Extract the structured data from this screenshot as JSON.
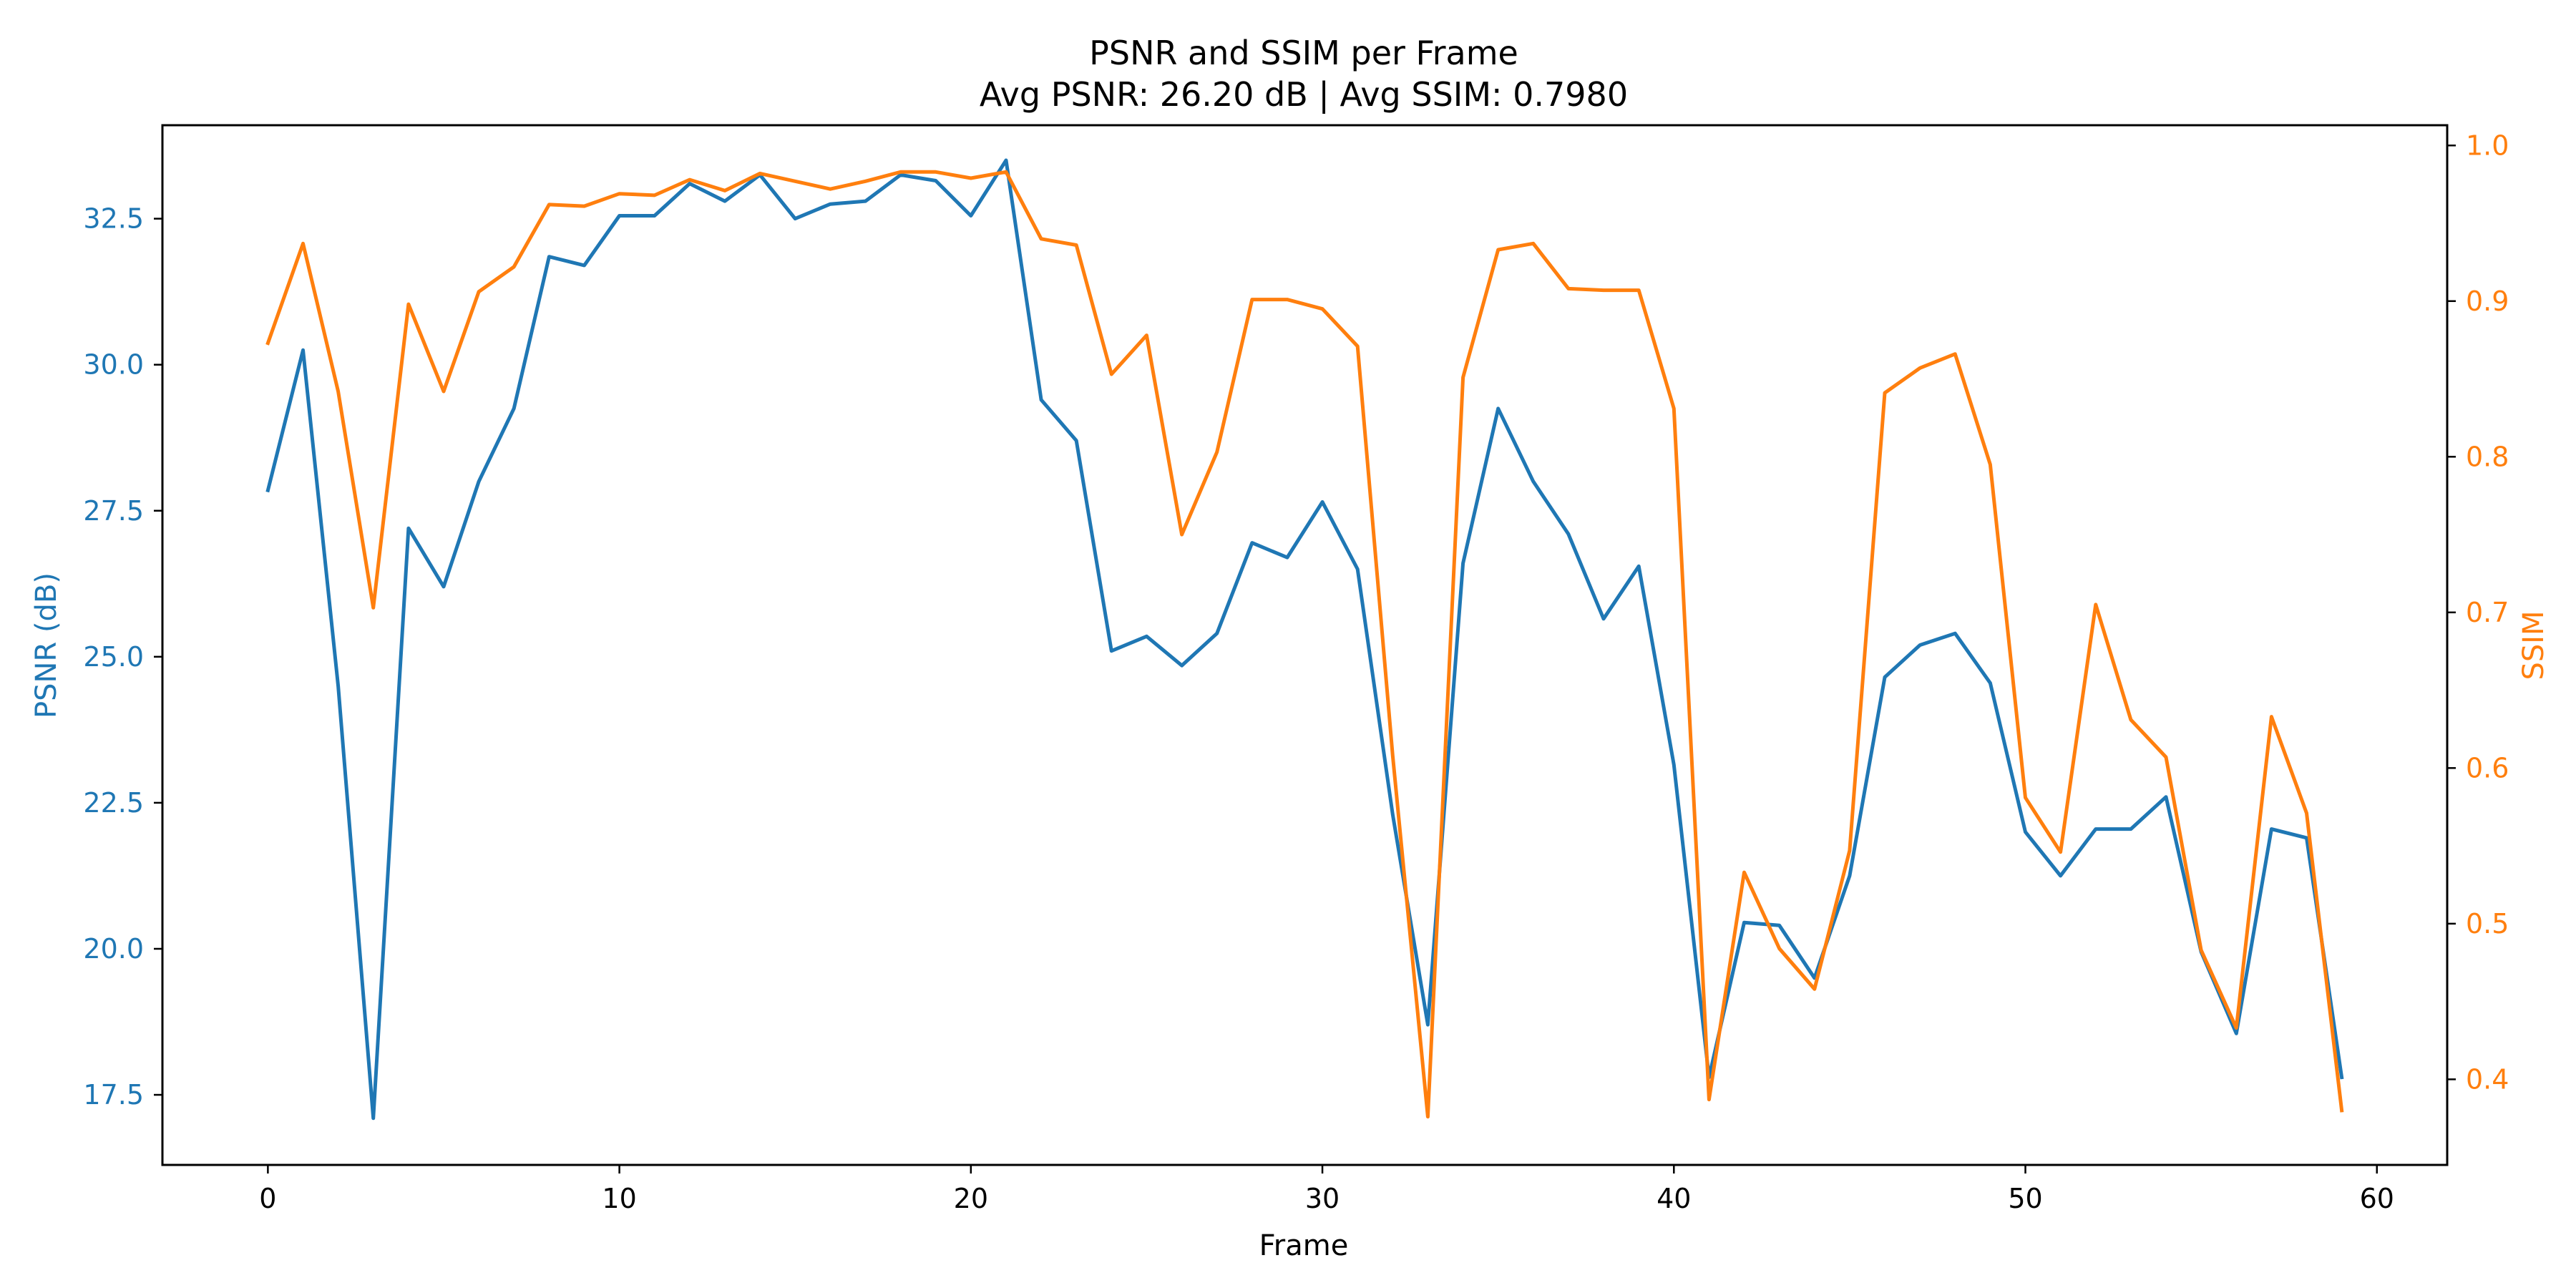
{
  "chart_data": {
    "type": "line",
    "title": "PSNR and SSIM per Frame",
    "subtitle": "Avg PSNR: 26.20 dB | Avg SSIM: 0.7980",
    "xlabel": "Frame",
    "ylabel_left": "PSNR (dB)",
    "ylabel_right": "SSIM",
    "xlim": [
      -3,
      62
    ],
    "ylim_left": [
      16.3,
      34.1
    ],
    "ylim_right": [
      0.345,
      1.013
    ],
    "x_ticks": [
      0,
      10,
      20,
      30,
      40,
      50,
      60
    ],
    "y_left_ticks": [
      "17.5",
      "20.0",
      "22.5",
      "25.0",
      "27.5",
      "30.0",
      "32.5"
    ],
    "y_right_ticks": [
      "0.4",
      "0.5",
      "0.6",
      "0.7",
      "0.8",
      "0.9",
      "1.0"
    ],
    "grid": false,
    "legend": "none",
    "colors": {
      "psnr": "#1f77b4",
      "ssim": "#ff7f0e"
    },
    "x": [
      0,
      1,
      2,
      3,
      4,
      5,
      6,
      7,
      8,
      9,
      10,
      11,
      12,
      13,
      14,
      15,
      16,
      17,
      18,
      19,
      20,
      21,
      22,
      23,
      24,
      25,
      26,
      27,
      28,
      29,
      30,
      31,
      32,
      33,
      34,
      35,
      36,
      37,
      38,
      39,
      40,
      41,
      42,
      43,
      44,
      45,
      46,
      47,
      48,
      49,
      50,
      51,
      52,
      53,
      54,
      55,
      56,
      57,
      58,
      59
    ],
    "series": [
      {
        "axis": "left",
        "color": "#1f77b4",
        "values": [
          27.85,
          30.25,
          24.5,
          17.1,
          27.2,
          26.2,
          28.0,
          29.25,
          31.85,
          31.7,
          32.55,
          32.55,
          33.1,
          32.8,
          33.25,
          32.5,
          32.75,
          32.8,
          33.25,
          33.15,
          32.55,
          33.5,
          29.4,
          28.7,
          25.1,
          25.35,
          24.85,
          25.4,
          26.95,
          26.7,
          27.65,
          26.5,
          22.3,
          18.7,
          26.6,
          29.25,
          28.0,
          27.1,
          25.65,
          26.55,
          23.15,
          17.8,
          20.45,
          20.4,
          19.5,
          21.25,
          24.65,
          25.2,
          25.4,
          24.55,
          22.0,
          21.25,
          22.05,
          22.05,
          22.6,
          19.95,
          18.55,
          22.05,
          21.9,
          17.8
        ]
      },
      {
        "axis": "right",
        "color": "#ff7f0e",
        "values": [
          0.873,
          0.937,
          0.842,
          0.703,
          0.898,
          0.842,
          0.906,
          0.922,
          0.962,
          0.961,
          0.969,
          0.968,
          0.978,
          0.971,
          0.982,
          0.977,
          0.972,
          0.977,
          0.983,
          0.983,
          0.979,
          0.983,
          0.94,
          0.936,
          0.853,
          0.878,
          0.75,
          0.803,
          0.901,
          0.901,
          0.895,
          0.871,
          0.608,
          0.376,
          0.851,
          0.933,
          0.937,
          0.908,
          0.907,
          0.907,
          0.831,
          0.387,
          0.533,
          0.484,
          0.458,
          0.547,
          0.841,
          0.857,
          0.866,
          0.795,
          0.581,
          0.546,
          0.705,
          0.631,
          0.607,
          0.483,
          0.433,
          0.633,
          0.571,
          0.38
        ]
      }
    ]
  }
}
